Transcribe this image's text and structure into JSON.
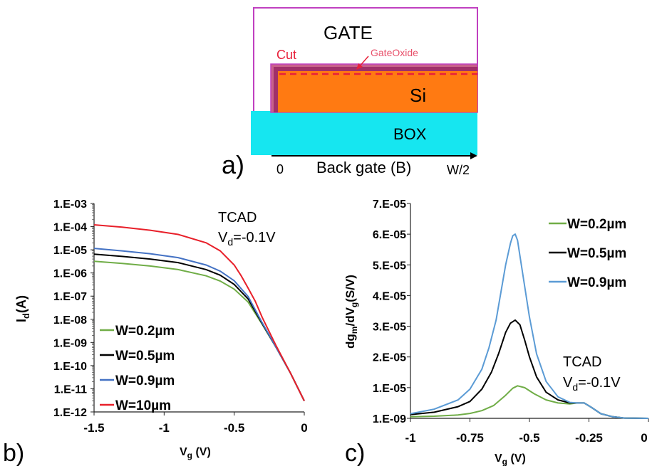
{
  "panels": {
    "a": {
      "letter": "a)",
      "labels": {
        "gate": "GATE",
        "cut": "Cut",
        "gate_oxide": "GateOxide",
        "si": "Si",
        "box": "BOX",
        "x0": "0",
        "back_gate": "Back gate (B)",
        "w2": "W/2"
      },
      "colors": {
        "gate_outline": "#c040c0",
        "oxide": "#b03060",
        "si": "#ff7a12",
        "box": "#16e6f0",
        "cut": "#e8203a"
      }
    },
    "b": {
      "letter": "b)"
    },
    "c": {
      "letter": "c)"
    }
  },
  "chart_data": [
    {
      "id": "b",
      "type": "line",
      "ylabel_main": "I",
      "ylabel_sub": "d",
      "ylabel_rest": "(A)",
      "xlabel_main": "V",
      "xlabel_sub": "g",
      "xlabel_rest": " (V)",
      "log_y": true,
      "xlim": [
        -1.5,
        0
      ],
      "ylim": [
        1e-12,
        0.001
      ],
      "xticks": [
        -1.5,
        -1,
        -0.5,
        0
      ],
      "xtick_labels": [
        "-1.5",
        "-1",
        "-0.5",
        "0"
      ],
      "yticks": [
        0.001,
        0.0001,
        1e-05,
        1e-06,
        1e-07,
        1e-08,
        1e-09,
        1e-10,
        1e-11,
        1e-12
      ],
      "ytick_labels": [
        "1.E-03",
        "1.E-04",
        "1.E-05",
        "1.E-06",
        "1.E-07",
        "1.E-08",
        "1.E-09",
        "1.E-10",
        "1.E-11",
        "1.E-12"
      ],
      "annotation": {
        "line1": "TCAD",
        "line2_main": "V",
        "line2_sub": "d",
        "line2_rest": "=-0.1V"
      },
      "series": [
        {
          "name": "W=0.2µm",
          "color": "#70ad47",
          "x": [
            -1.5,
            -1.3,
            -1.1,
            -0.9,
            -0.7,
            -0.6,
            -0.5,
            -0.4,
            -0.3,
            -0.2,
            -0.1,
            0
          ],
          "y": [
            3.2e-06,
            2.6e-06,
            2e-06,
            1.4e-06,
            7.5e-07,
            4.5e-07,
            2e-07,
            5.5e-08,
            6e-09,
            6e-10,
            5e-11,
            3e-12
          ]
        },
        {
          "name": "W=0.5µm",
          "color": "#000000",
          "x": [
            -1.5,
            -1.3,
            -1.1,
            -0.9,
            -0.7,
            -0.6,
            -0.5,
            -0.4,
            -0.3,
            -0.2,
            -0.1,
            0
          ],
          "y": [
            6.5e-06,
            5.2e-06,
            4e-06,
            2.8e-06,
            1.4e-06,
            8e-07,
            3.2e-07,
            7.5e-08,
            6.5e-09,
            6e-10,
            5e-11,
            3e-12
          ]
        },
        {
          "name": "W=0.9µm",
          "color": "#4472c4",
          "x": [
            -1.5,
            -1.3,
            -1.1,
            -0.9,
            -0.7,
            -0.6,
            -0.5,
            -0.4,
            -0.3,
            -0.2,
            -0.1,
            0
          ],
          "y": [
            1.15e-05,
            9e-06,
            6.8e-06,
            4.6e-06,
            2.2e-06,
            1.2e-06,
            4.6e-07,
            9.5e-08,
            7e-09,
            6e-10,
            5e-11,
            3e-12
          ]
        },
        {
          "name": "W=10µm",
          "color": "#e8202a",
          "x": [
            -1.5,
            -1.3,
            -1.1,
            -0.9,
            -0.7,
            -0.6,
            -0.5,
            -0.45,
            -0.4,
            -0.35,
            -0.3,
            -0.2,
            -0.1,
            0
          ],
          "y": [
            0.00012,
            9.5e-05,
            7e-05,
            4.6e-05,
            2e-05,
            9e-06,
            2.2e-06,
            7.5e-07,
            2.2e-07,
            6e-08,
            1.2e-08,
            7e-10,
            5e-11,
            3e-12
          ]
        }
      ]
    },
    {
      "id": "c",
      "type": "line",
      "ylabel": "dg_m/dV_g(S/V)",
      "xlabel_main": "V",
      "xlabel_sub": "g",
      "xlabel_rest": " (V)",
      "xlim": [
        -1,
        0
      ],
      "ylim": [
        0,
        7
      ],
      "xticks": [
        -1,
        -0.75,
        -0.5,
        -0.25,
        0
      ],
      "xtick_labels": [
        "-1",
        "-0.75",
        "-0.5",
        "-0.25",
        "0"
      ],
      "yticks": [
        0,
        1,
        2,
        3,
        4,
        5,
        6,
        7
      ],
      "ytick_labels": [
        "1.E-09",
        "1.E-05",
        "2.E-05",
        "3.E-05",
        "4.E-05",
        "5.E-05",
        "6.E-05",
        "7.E-05"
      ],
      "annotation": {
        "line1": "TCAD",
        "line2_main": "V",
        "line2_sub": "d",
        "line2_rest": "=-0.1V"
      },
      "series": [
        {
          "name": "W=0.2µm",
          "color": "#70ad47",
          "x": [
            -1,
            -0.9,
            -0.8,
            -0.75,
            -0.7,
            -0.65,
            -0.6,
            -0.57,
            -0.55,
            -0.52,
            -0.48,
            -0.43,
            -0.38,
            -0.33,
            -0.3,
            -0.27,
            -0.24,
            -0.2,
            -0.15,
            -0.1,
            0
          ],
          "y": [
            0.05,
            0.07,
            0.11,
            0.16,
            0.25,
            0.42,
            0.75,
            0.98,
            1.06,
            1.0,
            0.8,
            0.6,
            0.5,
            0.47,
            0.5,
            0.5,
            0.36,
            0.15,
            0.05,
            0.01,
            0
          ]
        },
        {
          "name": "W=0.5µm",
          "color": "#000000",
          "x": [
            -1,
            -0.9,
            -0.8,
            -0.75,
            -0.7,
            -0.66,
            -0.63,
            -0.6,
            -0.58,
            -0.56,
            -0.54,
            -0.52,
            -0.5,
            -0.47,
            -0.43,
            -0.38,
            -0.33,
            -0.3,
            -0.27,
            -0.24,
            -0.2,
            -0.15,
            -0.1,
            0
          ],
          "y": [
            0.12,
            0.2,
            0.38,
            0.55,
            0.95,
            1.5,
            2.1,
            2.8,
            3.1,
            3.2,
            3.05,
            2.55,
            2.0,
            1.35,
            0.85,
            0.6,
            0.5,
            0.5,
            0.5,
            0.36,
            0.15,
            0.05,
            0.01,
            0
          ]
        },
        {
          "name": "W=0.9µm",
          "color": "#5b9bd5",
          "x": [
            -1,
            -0.9,
            -0.8,
            -0.75,
            -0.7,
            -0.67,
            -0.64,
            -0.62,
            -0.6,
            -0.58,
            -0.57,
            -0.56,
            -0.55,
            -0.54,
            -0.52,
            -0.5,
            -0.47,
            -0.43,
            -0.38,
            -0.33,
            -0.3,
            -0.27,
            -0.24,
            -0.2,
            -0.15,
            -0.1,
            0
          ],
          "y": [
            0.15,
            0.3,
            0.6,
            0.95,
            1.6,
            2.3,
            3.2,
            4.1,
            5.0,
            5.7,
            5.95,
            6.0,
            5.8,
            5.3,
            4.3,
            3.3,
            2.1,
            1.2,
            0.7,
            0.52,
            0.5,
            0.5,
            0.36,
            0.15,
            0.05,
            0.01,
            0
          ]
        }
      ]
    }
  ]
}
